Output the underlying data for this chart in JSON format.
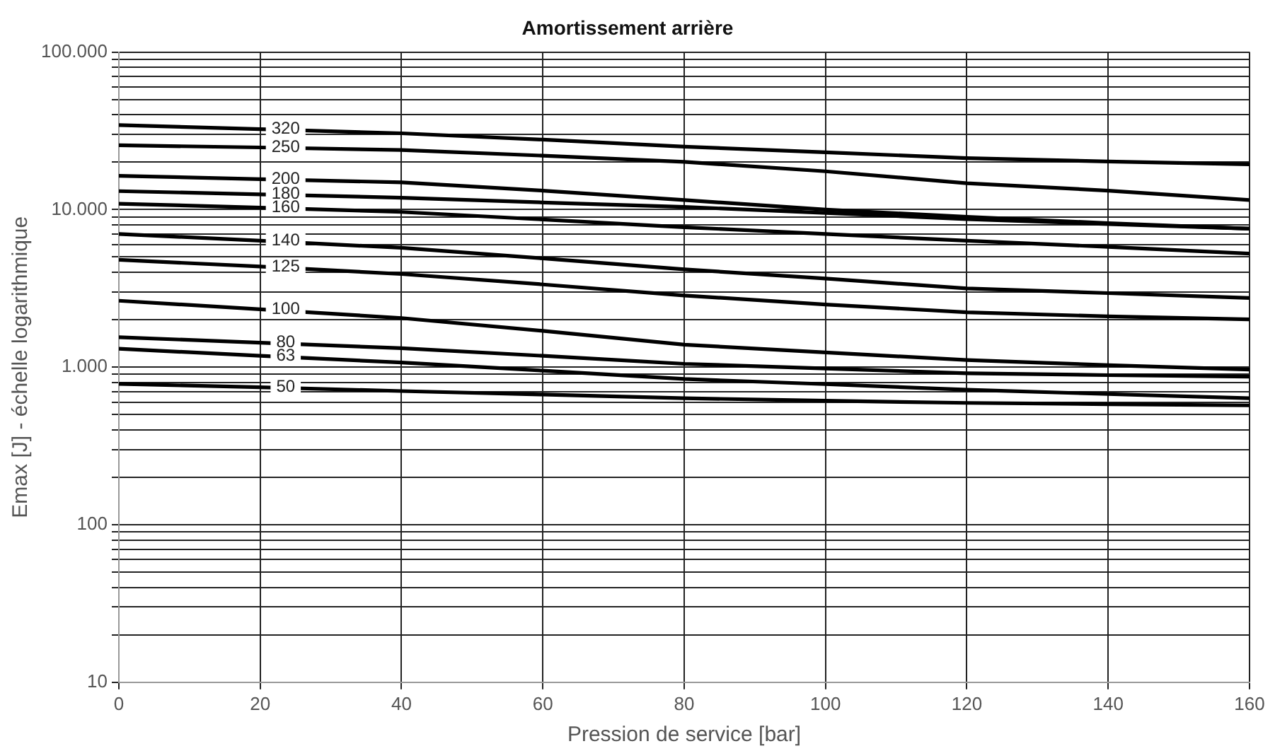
{
  "chart_data": {
    "type": "line",
    "title": "Amortissement arrière",
    "xlabel": "Pression de service [bar]",
    "ylabel": "Emax [J] - échelle logarithmique",
    "x": [
      0,
      20,
      40,
      60,
      80,
      100,
      120,
      140,
      160
    ],
    "series": [
      {
        "name": "320",
        "color": "#000000",
        "values": [
          34400,
          32400,
          30500,
          27800,
          25100,
          23100,
          21200,
          20200,
          19400
        ]
      },
      {
        "name": "250",
        "color": "#000000",
        "values": [
          25600,
          24800,
          23900,
          22000,
          20100,
          17500,
          14700,
          13200,
          11500
        ]
      },
      {
        "name": "200",
        "color": "#000000",
        "values": [
          16400,
          15600,
          14900,
          13200,
          11500,
          10000,
          9000,
          8200,
          7570
        ]
      },
      {
        "name": "180",
        "color": "#000000",
        "values": [
          13100,
          12500,
          11900,
          11100,
          10400,
          9530,
          8700,
          8100,
          7570
        ]
      },
      {
        "name": "160",
        "color": "#000000",
        "values": [
          10900,
          10300,
          9660,
          8650,
          7730,
          7000,
          6350,
          5800,
          5260
        ]
      },
      {
        "name": "140",
        "color": "#000000",
        "values": [
          7000,
          6350,
          5720,
          4900,
          4180,
          3650,
          3160,
          2950,
          2750
        ]
      },
      {
        "name": "125",
        "color": "#000000",
        "values": [
          4800,
          4350,
          3900,
          3350,
          2850,
          2500,
          2230,
          2100,
          2010
        ]
      },
      {
        "name": "100",
        "color": "#000000",
        "values": [
          2640,
          2330,
          2050,
          1700,
          1390,
          1240,
          1110,
          1030,
          966
        ]
      },
      {
        "name": "80",
        "color": "#000000",
        "values": [
          1550,
          1430,
          1320,
          1180,
          1050,
          980,
          915,
          890,
          870
        ]
      },
      {
        "name": "63",
        "color": "#000000",
        "values": [
          1310,
          1180,
          1070,
          950,
          841,
          780,
          719,
          675,
          635
        ]
      },
      {
        "name": "50",
        "color": "#000000",
        "values": [
          783,
          745,
          705,
          670,
          635,
          612,
          593,
          582,
          572
        ]
      }
    ],
    "xlim": [
      0,
      160
    ],
    "xticks": [
      0,
      20,
      40,
      60,
      80,
      100,
      120,
      140,
      160
    ],
    "ylim": [
      10,
      100000
    ],
    "yticks": [
      10,
      {
        "value": 20,
        "label": null
      },
      {
        "value": 30,
        "label": null
      },
      {
        "value": 40,
        "label": null
      },
      {
        "value": 50,
        "label": null
      },
      {
        "value": 60,
        "label": null
      },
      {
        "value": 70,
        "label": null
      },
      {
        "value": 80,
        "label": null
      },
      {
        "value": 90,
        "label": null
      },
      100,
      {
        "value": 200,
        "label": null
      },
      {
        "value": 300,
        "label": null
      },
      {
        "value": 400,
        "label": null
      },
      {
        "value": 500,
        "label": null
      },
      {
        "value": 600,
        "label": null
      },
      {
        "value": 700,
        "label": null
      },
      {
        "value": 800,
        "label": null
      },
      {
        "value": 900,
        "label": null
      },
      {
        "value": 1000,
        "label": "1.000"
      },
      {
        "value": 2000,
        "label": null
      },
      {
        "value": 3000,
        "label": null
      },
      {
        "value": 4000,
        "label": null
      },
      {
        "value": 5000,
        "label": null
      },
      {
        "value": 6000,
        "label": null
      },
      {
        "value": 7000,
        "label": null
      },
      {
        "value": 8000,
        "label": null
      },
      {
        "value": 9000,
        "label": null
      },
      {
        "value": 10000,
        "label": "10.000"
      },
      {
        "value": 20000,
        "label": null
      },
      {
        "value": 30000,
        "label": null
      },
      {
        "value": 40000,
        "label": null
      },
      {
        "value": 50000,
        "label": null
      },
      {
        "value": 60000,
        "label": null
      },
      {
        "value": 70000,
        "label": null
      },
      {
        "value": 80000,
        "label": null
      },
      {
        "value": 90000,
        "label": null
      },
      {
        "value": 100000,
        "label": "100.000"
      }
    ],
    "log": "y",
    "grid": true,
    "legend": false,
    "marker": "none",
    "line_style": "solid"
  }
}
